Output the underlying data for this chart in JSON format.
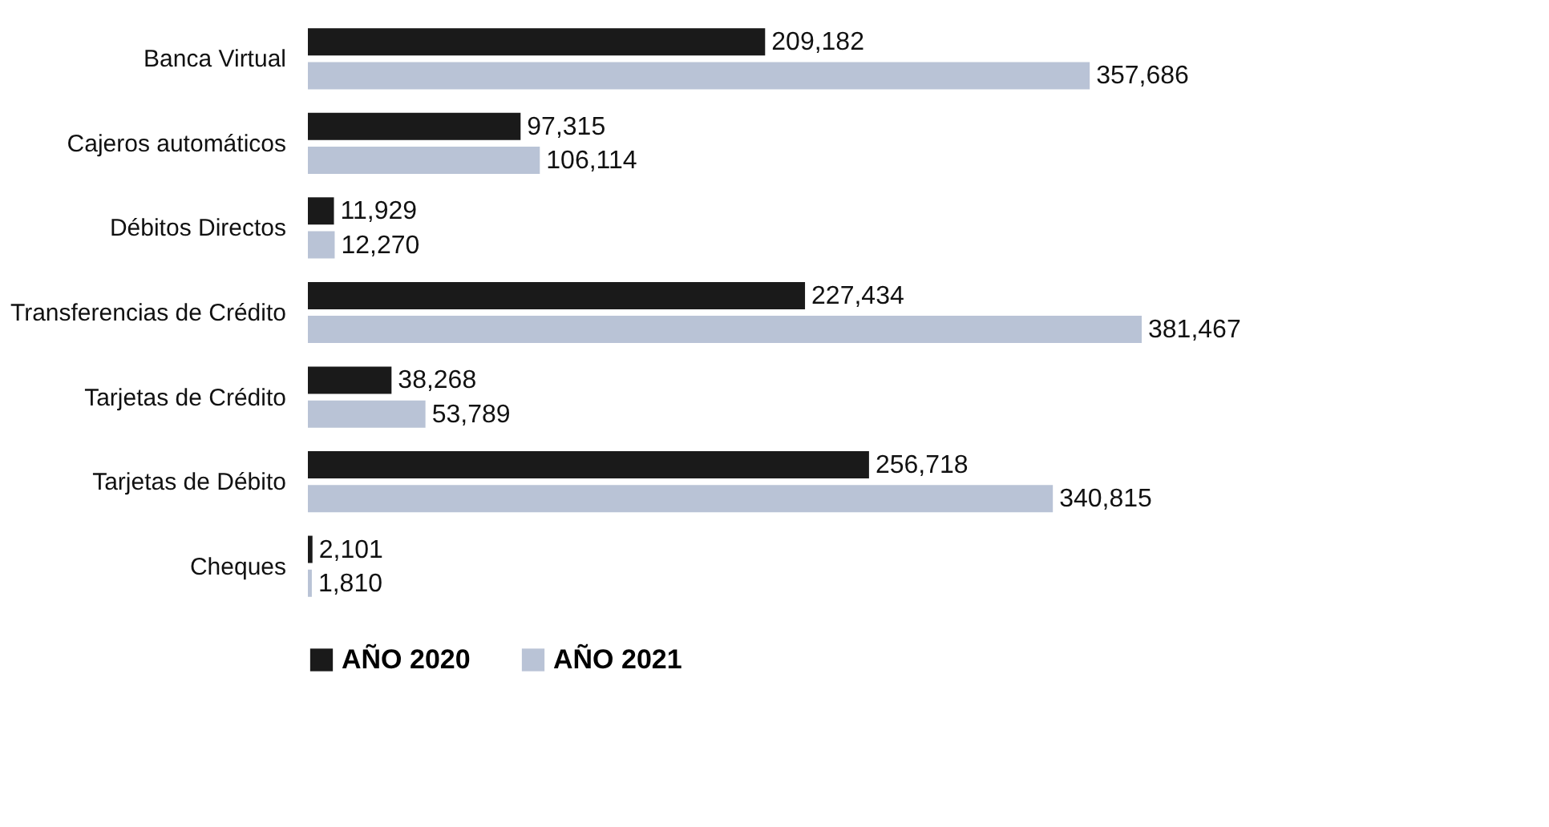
{
  "chart_data": {
    "type": "bar",
    "orientation": "horizontal",
    "legend": "bottom",
    "categories": [
      "Banca Virtual",
      "Cajeros automáticos",
      "Débitos Directos",
      "Transferencias de Crédito",
      "Tarjetas de Crédito",
      "Tarjetas de Débito",
      "Cheques"
    ],
    "series": [
      {
        "name": "AÑO 2020",
        "color": "#1a1a1a",
        "values": [
          209182,
          97315,
          11929,
          227434,
          38268,
          256718,
          2101
        ],
        "value_labels": [
          "209,182",
          "97,315",
          "11,929",
          "227,434",
          "38,268",
          "256,718",
          "2,101"
        ]
      },
      {
        "name": "AÑO 2021",
        "color": "#b9c3d6",
        "values": [
          357686,
          106114,
          12270,
          381467,
          53789,
          340815,
          1810
        ],
        "value_labels": [
          "357,686",
          "106,114",
          "12,270",
          "381,467",
          "53,789",
          "340,815",
          "1,810"
        ]
      }
    ]
  }
}
